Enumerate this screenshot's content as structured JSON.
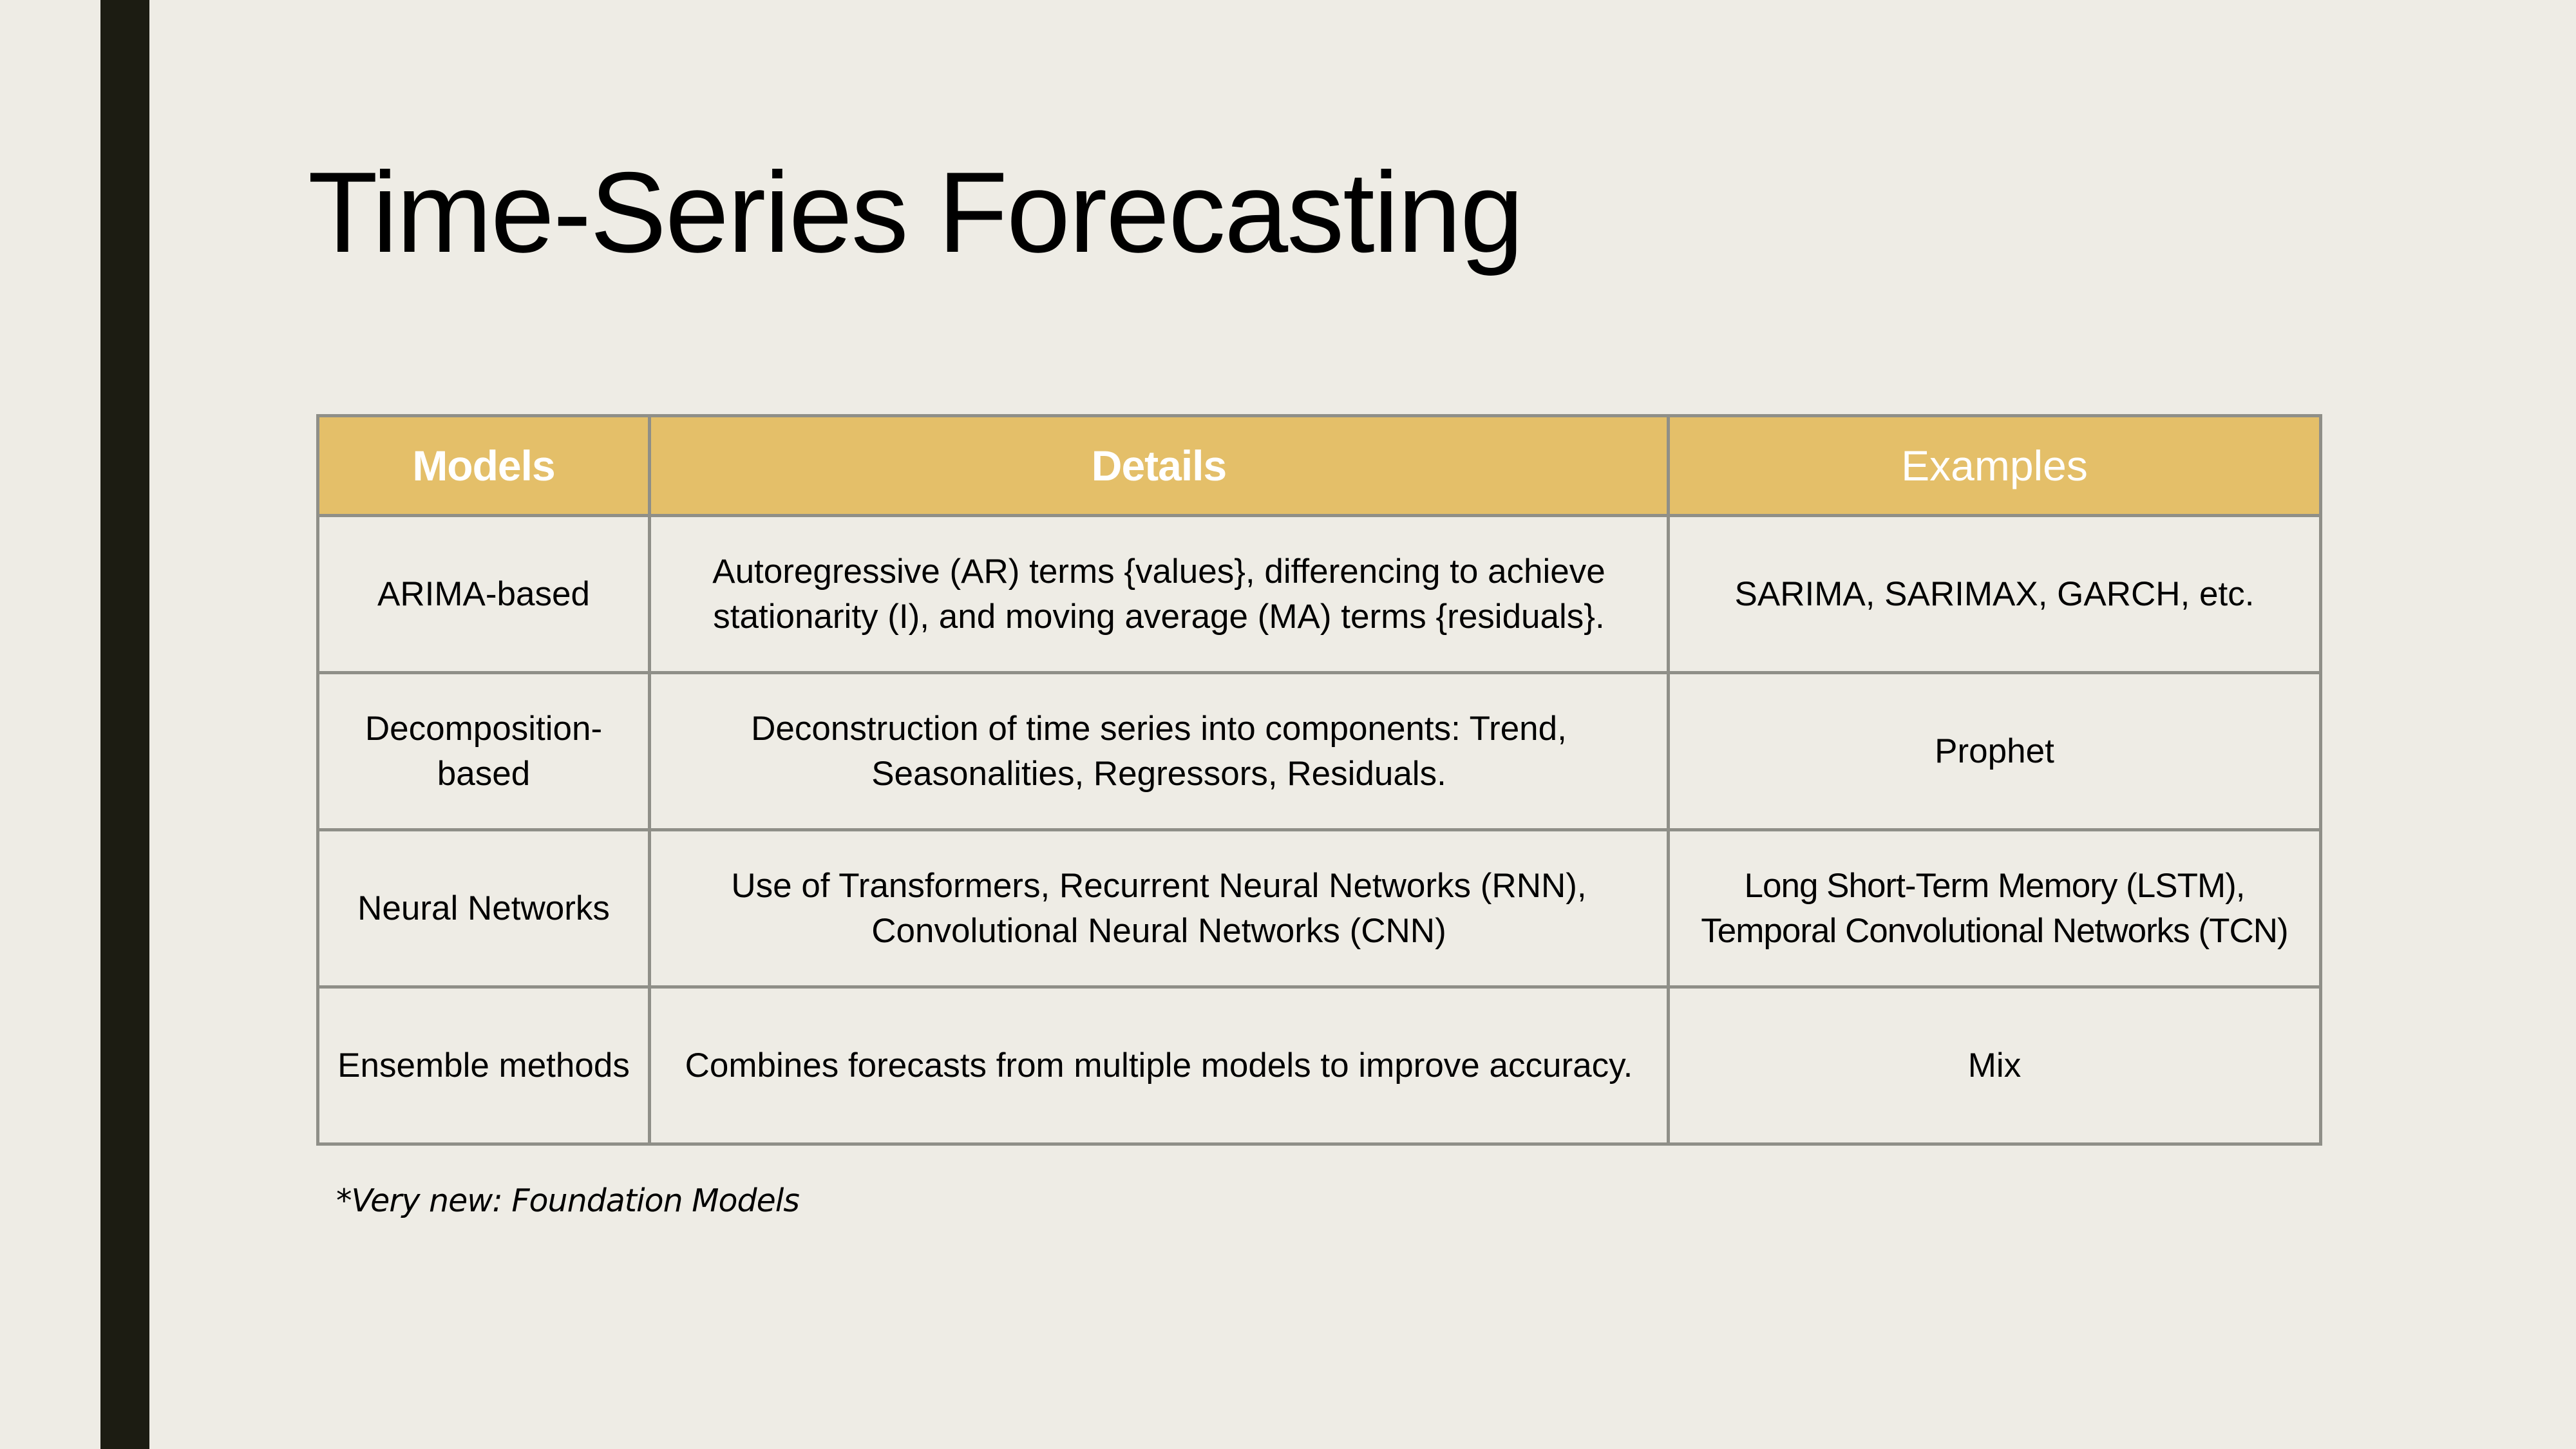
{
  "slide": {
    "title": "Time-Series Forecasting",
    "footnote": "*Very new: Foundation Models",
    "colors": {
      "background": "#EEECE5",
      "left_bar": "#1C1C12",
      "header_fill": "#E4BF69",
      "header_text": "#FFFFFF",
      "grid": "#8F8F88"
    }
  },
  "table": {
    "headers": {
      "models": "Models",
      "details": "Details",
      "examples": "Examples"
    },
    "rows": [
      {
        "model": "ARIMA-based",
        "details": "Autoregressive (AR) terms {values}, differencing to achieve stationarity (I), and moving average (MA) terms {residuals}.",
        "examples": "SARIMA, SARIMAX, GARCH, etc."
      },
      {
        "model": "Decomposition-based",
        "details": "Deconstruction of time series into components: Trend, Seasonalities, Regressors, Residuals.",
        "examples": "Prophet"
      },
      {
        "model": "Neural Networks",
        "details": "Use of Transformers, Recurrent Neural Networks (RNN), Convolutional Neural Networks (CNN)",
        "examples": "Long Short-Term Memory (LSTM), Temporal Convolutional Networks (TCN)"
      },
      {
        "model": "Ensemble methods",
        "details": "Combines forecasts from multiple models to improve accuracy.",
        "examples": "Mix"
      }
    ]
  }
}
